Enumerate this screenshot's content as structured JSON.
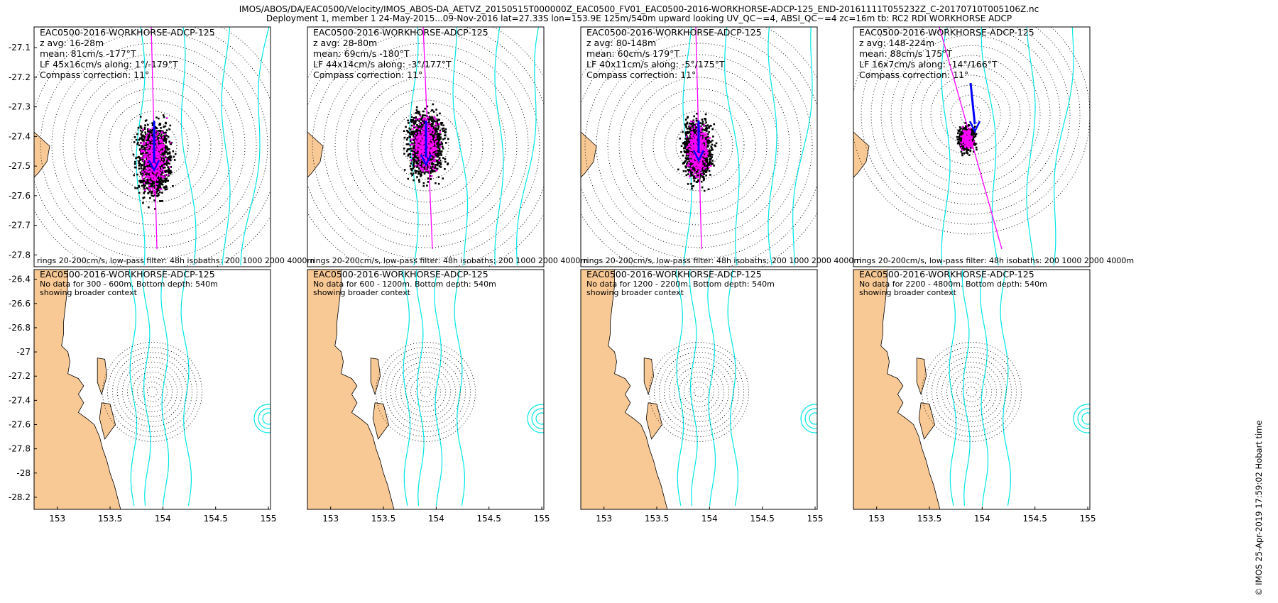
{
  "figure": {
    "title_line1": "IMOS/ABOS/DA/EAC0500/Velocity/IMOS_ABOS-DA_AETVZ_20150515T000000Z_EAC0500_FV01_EAC0500-2016-WORKHORSE-ADCP-125_END-20161111T055232Z_C-20170710T005106Z.nc",
    "title_line2": "Deployment 1, member 1 24-May-2015...09-Nov-2016 lat=27.33S lon=153.9E 125m/540m upward looking UV_QC~=4, ABSI_QC~=4 zc=16m tb: RC2 RDI WORKHORSE ADCP",
    "timestamp": "© IMOS 25-Apr-2019 17:59:02 Hobart time",
    "colors": {
      "land": "#f9c995",
      "isobath": "#00e6e6",
      "arrow": "#0000ff",
      "lowpass": "#ff00ff",
      "raw": "#000000",
      "major_axis": "#ff00ff"
    }
  },
  "chart_data": [
    {
      "type": "scatter",
      "panel": "top-1",
      "title": "EAC0500-2016-WORKHORSE-ADCP-125",
      "lines": [
        "z avg: 16-28m",
        "mean: 81cm/s -177°T",
        "LF 45x16cm/s along: 1°/-179°T",
        "Compass correction: 11°"
      ],
      "footer": "rings 20-200cm/s, low-pass filter: 48h isobaths: 200 1000 2000 4000m",
      "ylim": [
        -27.84,
        -27.03
      ],
      "yticks": [
        "-27.1",
        "-27.2",
        "-27.3",
        "-27.4",
        "-27.5",
        "-27.6",
        "-27.7",
        "-27.8"
      ],
      "mean_speed_cms": 81,
      "mean_dir_degT": -177,
      "major_cms": 45,
      "minor_cms": 16,
      "along_dir_degT": -179
    },
    {
      "type": "scatter",
      "panel": "top-2",
      "title": "EAC0500-2016-WORKHORSE-ADCP-125",
      "lines": [
        "z avg: 28-80m",
        "mean: 69cm/s -180°T",
        "LF 44x14cm/s along: -3°/177°T",
        "Compass correction: 11°"
      ],
      "footer": "rings 20-200cm/s, low-pass filter: 48h isobaths: 200 1000 2000 4000m",
      "mean_speed_cms": 69,
      "mean_dir_degT": -180,
      "major_cms": 44,
      "minor_cms": 14,
      "along_dir_degT": 177
    },
    {
      "type": "scatter",
      "panel": "top-3",
      "title": "EAC0500-2016-WORKHORSE-ADCP-125",
      "lines": [
        "z avg: 80-148m",
        "mean: 60cm/s 179°T",
        "LF 40x11cm/s along: -5°/175°T",
        "Compass correction: 11°"
      ],
      "footer": "rings 20-200cm/s, low-pass filter: 48h isobaths: 200 1000 2000 4000m",
      "mean_speed_cms": 60,
      "mean_dir_degT": 179,
      "major_cms": 40,
      "minor_cms": 11,
      "along_dir_degT": 175
    },
    {
      "type": "scatter",
      "panel": "top-4",
      "title": "EAC0500-2016-WORKHORSE-ADCP-125",
      "lines": [
        "z avg: 148-224m",
        "mean: 88cm/s 175°T",
        "LF 16x7cm/s along: -14°/166°T",
        "Compass correction: 11°"
      ],
      "footer": "rings 20-200cm/s, low-pass filter: 48h isobaths: 200 1000 2000 4000m",
      "mean_speed_cms": 88,
      "mean_dir_degT": 175,
      "major_cms": 16,
      "minor_cms": 7,
      "along_dir_degT": 166
    },
    {
      "type": "map",
      "panel": "bottom-1",
      "title": "EAC0500-2016-WORKHORSE-ADCP-125",
      "lines": [
        "No data for 300 - 600m. Bottom depth: 540m",
        "showing broader context"
      ],
      "xlim": [
        152.78,
        155.02
      ],
      "xticks": [
        "153",
        "153.5",
        "154",
        "154.5",
        "155"
      ],
      "ylim": [
        -28.3,
        -26.32
      ],
      "yticks": [
        "-26.4",
        "-26.6",
        "-26.8",
        "-27",
        "-27.2",
        "-27.4",
        "-27.6",
        "-27.8",
        "-28",
        "-28.2"
      ]
    },
    {
      "type": "map",
      "panel": "bottom-2",
      "title": "EAC0500-2016-WORKHORSE-ADCP-125",
      "lines": [
        "No data for 600 - 1200m. Bottom depth: 540m",
        "showing broader context"
      ],
      "xticks": [
        "153",
        "153.5",
        "154",
        "154.5",
        "155"
      ]
    },
    {
      "type": "map",
      "panel": "bottom-3",
      "title": "EAC0500-2016-WORKHORSE-ADCP-125",
      "lines": [
        "No data for 1200 - 2200m. Bottom depth: 540m",
        "showing broader context"
      ],
      "xticks": [
        "153",
        "153.5",
        "154",
        "154.5",
        "155"
      ]
    },
    {
      "type": "map",
      "panel": "bottom-4",
      "title": "EAC0500-2016-WORKHORSE-ADCP-125",
      "lines": [
        "No data for 2200 - 4800m. Bottom depth: 540m",
        "showing broader context"
      ],
      "xticks": [
        "153",
        "153.5",
        "154",
        "154.5",
        "155"
      ]
    }
  ]
}
